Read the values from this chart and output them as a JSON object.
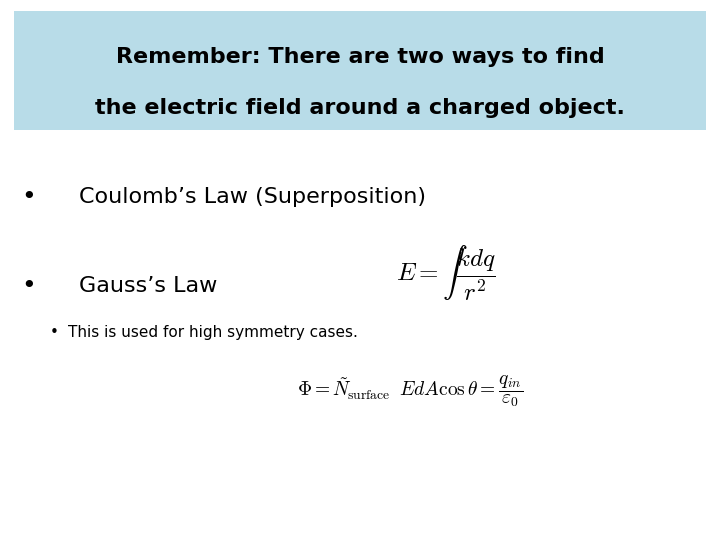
{
  "background_color": "#ffffff",
  "header_bg_color": "#b8dce8",
  "header_text_line1": "Remember: There are two ways to find",
  "header_text_line2": "the electric field around a charged object.",
  "header_fontsize": 16,
  "bullet1_text": "Coulomb’s Law (Superposition)",
  "bullet1_fontsize": 16,
  "bullet2_text": "Gauss’s Law",
  "bullet2_fontsize": 16,
  "subbullet_text": "This is used for high symmetry cases.",
  "subbullet_fontsize": 11,
  "eq1_fontsize": 14,
  "eq2_fontsize": 12,
  "fig_width": 7.2,
  "fig_height": 5.4,
  "dpi": 100
}
